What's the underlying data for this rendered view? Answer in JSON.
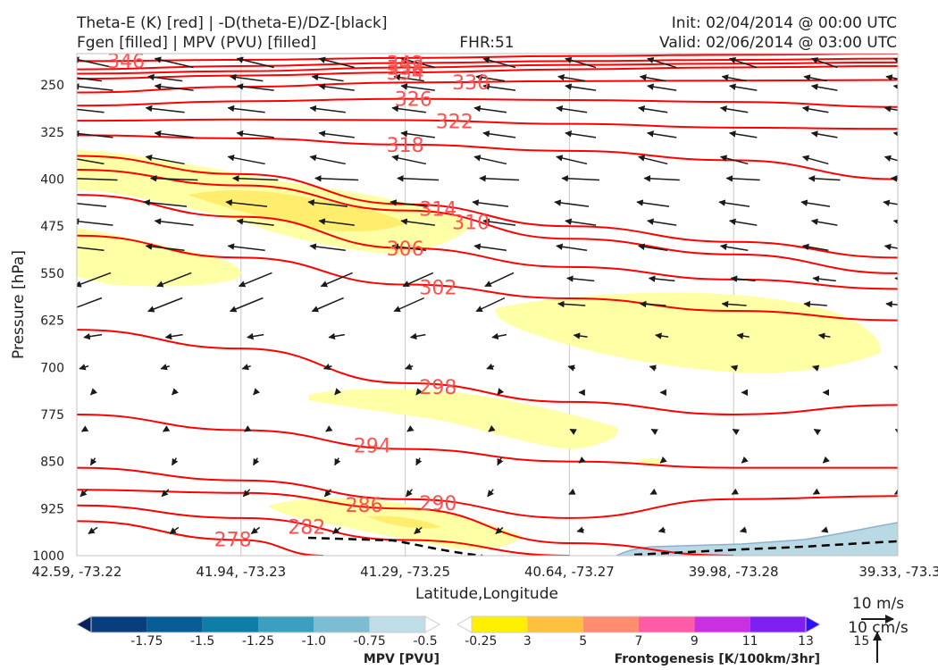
{
  "header": {
    "title_line1": "Theta-E (K) [red] | -D(theta-E)/DZ-[black]",
    "title_line2": "Fgen [filled] | MPV (PVU) [filled]",
    "fhr": "FHR:51",
    "init": "Init: 02/04/2014 @ 00:00 UTC",
    "valid": "Valid: 02/06/2014 @ 03:00 UTC"
  },
  "colors": {
    "theta_e": "#ff0000",
    "theta_e_label": "#ff5050",
    "fgen_light": "#ffffa6",
    "fgen_mid": "#ffee6e",
    "mpv_fill": "#b9d9e4",
    "arrow": "#1a1a1a"
  },
  "chart_data": {
    "type": "cross-section",
    "xlabel": "Latitude,Longitude",
    "ylabel": "Pressure [hPa]",
    "x_ticks": [
      "42.59, -73.22",
      "41.94, -73.23",
      "41.29, -73.25",
      "40.64, -73.27",
      "39.98, -73.28",
      "39.33, -73.3"
    ],
    "y_ticks": [
      250,
      325,
      400,
      475,
      550,
      625,
      700,
      775,
      850,
      925,
      1000
    ],
    "ylim": [
      1000,
      200
    ],
    "theta_e_contours": [
      {
        "label": "346",
        "level": 346,
        "points": [
          [
            0,
            212
          ],
          [
            1,
            210
          ],
          [
            2,
            207
          ],
          [
            3,
            204
          ],
          [
            4,
            202
          ],
          [
            5,
            200
          ]
        ]
      },
      {
        "label": "342",
        "level": 342,
        "points": [
          [
            0,
            225
          ],
          [
            1,
            220
          ],
          [
            2,
            215
          ],
          [
            3,
            212
          ],
          [
            4,
            210
          ],
          [
            5,
            208
          ]
        ]
      },
      {
        "label": "338",
        "level": 338,
        "points": [
          [
            0,
            232
          ],
          [
            1,
            228
          ],
          [
            2,
            222
          ],
          [
            3,
            218
          ],
          [
            4,
            216
          ],
          [
            5,
            214
          ]
        ]
      },
      {
        "label": "334",
        "level": 334,
        "points": [
          [
            0,
            240
          ],
          [
            1,
            235
          ],
          [
            2,
            230
          ],
          [
            3,
            225
          ],
          [
            4,
            222
          ],
          [
            5,
            220
          ]
        ]
      },
      {
        "label": "330",
        "level": 330,
        "points": [
          [
            0,
            262
          ],
          [
            1,
            253
          ],
          [
            2,
            246
          ],
          [
            3,
            244
          ],
          [
            4,
            243
          ],
          [
            5,
            242
          ]
        ]
      },
      {
        "label": "326",
        "level": 326,
        "points": [
          [
            0,
            283
          ],
          [
            1,
            276
          ],
          [
            2,
            272
          ],
          [
            3,
            274
          ],
          [
            4,
            277
          ],
          [
            5,
            285
          ]
        ]
      },
      {
        "label": "322",
        "level": 322,
        "points": [
          [
            0,
            307
          ],
          [
            1,
            305
          ],
          [
            2,
            306
          ],
          [
            3,
            312
          ],
          [
            4,
            318
          ],
          [
            5,
            320
          ]
        ]
      },
      {
        "label": "318",
        "level": 318,
        "points": [
          [
            0,
            330
          ],
          [
            1,
            335
          ],
          [
            2,
            345
          ],
          [
            3,
            355
          ],
          [
            4,
            370
          ],
          [
            5,
            400
          ]
        ]
      },
      {
        "label": "314",
        "level": 314,
        "points": [
          [
            0,
            363
          ],
          [
            1,
            392
          ],
          [
            2,
            440
          ],
          [
            3,
            475
          ],
          [
            4,
            500
          ],
          [
            5,
            525
          ]
        ]
      },
      {
        "label": "310",
        "level": 310,
        "points": [
          [
            0,
            385
          ],
          [
            1,
            410
          ],
          [
            2,
            450
          ],
          [
            3,
            495
          ],
          [
            4,
            520
          ],
          [
            5,
            550
          ]
        ]
      },
      {
        "label": "306",
        "level": 306,
        "points": [
          [
            0,
            425
          ],
          [
            1,
            460
          ],
          [
            2,
            510
          ],
          [
            3,
            540
          ],
          [
            4,
            560
          ],
          [
            5,
            575
          ]
        ]
      },
      {
        "label": "302",
        "level": 302,
        "points": [
          [
            0,
            490
          ],
          [
            1,
            525
          ],
          [
            2,
            568
          ],
          [
            3,
            590
          ],
          [
            4,
            610
          ],
          [
            5,
            625
          ]
        ]
      },
      {
        "label": "298",
        "level": 298,
        "points": [
          [
            0,
            640
          ],
          [
            1,
            670
          ],
          [
            2,
            725
          ],
          [
            3,
            755
          ],
          [
            4,
            775
          ],
          [
            5,
            760
          ]
        ]
      },
      {
        "label": "294",
        "level": 294,
        "points": [
          [
            0,
            775
          ],
          [
            1,
            800
          ],
          [
            2,
            830
          ],
          [
            3,
            850
          ],
          [
            4,
            860
          ],
          [
            5,
            860
          ]
        ]
      },
      {
        "label": "290",
        "level": 290,
        "points": [
          [
            0,
            860
          ],
          [
            1,
            880
          ],
          [
            2,
            910
          ],
          [
            3,
            940
          ],
          [
            4,
            910
          ],
          [
            5,
            905
          ]
        ]
      },
      {
        "label": "286",
        "level": 286,
        "points": [
          [
            0,
            895
          ],
          [
            1,
            900
          ],
          [
            2,
            925
          ],
          [
            3,
            980
          ],
          [
            4,
            1000
          ]
        ]
      },
      {
        "label": "282",
        "level": 282,
        "points": [
          [
            0,
            920
          ],
          [
            1,
            940
          ],
          [
            2,
            975
          ],
          [
            3,
            1000
          ]
        ]
      },
      {
        "label": "278",
        "level": 278,
        "points": [
          [
            0,
            945
          ],
          [
            1,
            975
          ],
          [
            1.5,
            1000
          ]
        ]
      }
    ],
    "legend_mpv": {
      "label": "MPV [PVU]",
      "ticks": [
        "-1.75",
        "-1.5",
        "-1.25",
        "-1.0",
        "-0.75",
        "-0.5",
        "-0.25"
      ],
      "colors": [
        "#08205e",
        "#083d7e",
        "#075e96",
        "#0e7ea8",
        "#3d9fbf",
        "#7dbdd2",
        "#bfdde6",
        "#ffffff"
      ]
    },
    "legend_fgen": {
      "label": "Frontogenesis [K/100km/3hr]",
      "ticks": [
        "3",
        "5",
        "7",
        "9",
        "11",
        "13",
        "15"
      ],
      "colors": [
        "#ffffff",
        "#ffef00",
        "#ffbf40",
        "#ff8c6e",
        "#ff5ca8",
        "#c830e0",
        "#8020f0",
        "#3010ff"
      ]
    },
    "wind_ref": {
      "label_ms": "10 m/s",
      "label_cms": "10 cm/s"
    }
  }
}
